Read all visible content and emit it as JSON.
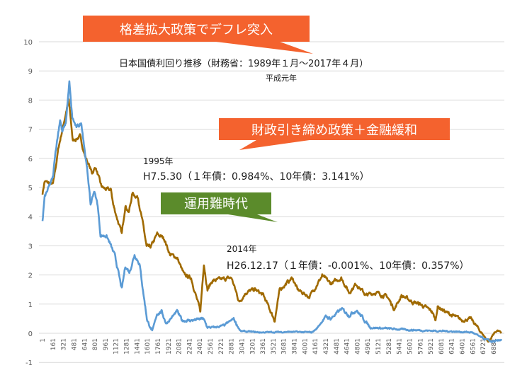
{
  "chart_data": {
    "type": "line",
    "title": "日本国債利回り推移（財務省：1989年１月～2017年４月）",
    "subtitle": "平成元年",
    "xlabel": "",
    "ylabel": "",
    "ylim": [
      -1,
      10
    ],
    "yticks": [
      "10",
      "9",
      "8",
      "7",
      "6",
      "5",
      "4",
      "3",
      "2",
      "1",
      "0",
      "-1"
    ],
    "xlim": [
      1,
      7000
    ],
    "xticks": [
      "1",
      "161",
      "321",
      "481",
      "641",
      "801",
      "961",
      "1121",
      "1281",
      "1441",
      "1601",
      "1761",
      "1921",
      "2081",
      "2241",
      "2401",
      "2561",
      "2721",
      "2881",
      "3041",
      "3201",
      "3361",
      "3521",
      "3681",
      "3841",
      "4001",
      "4161",
      "4321",
      "4481",
      "4641",
      "4801",
      "4961",
      "5121",
      "5281",
      "5441",
      "5601",
      "5761",
      "5921",
      "6081",
      "6241",
      "6401",
      "6561",
      "6721",
      "6881"
    ],
    "grid": true,
    "series": [
      {
        "name": "10年債",
        "color": "#a06a00",
        "points": [
          [
            1,
            4.8
          ],
          [
            32,
            5.2
          ],
          [
            162,
            5.1
          ],
          [
            248,
            6.4
          ],
          [
            400,
            8.0
          ],
          [
            464,
            6.6
          ],
          [
            572,
            6.75
          ],
          [
            648,
            6.1
          ],
          [
            756,
            5.5
          ],
          [
            810,
            5.7
          ],
          [
            896,
            5.05
          ],
          [
            950,
            4.95
          ],
          [
            1048,
            4.9
          ],
          [
            1080,
            4.4
          ],
          [
            1210,
            3.4
          ],
          [
            1264,
            4.4
          ],
          [
            1318,
            4.15
          ],
          [
            1372,
            4.8
          ],
          [
            1458,
            4.65
          ],
          [
            1544,
            3.6
          ],
          [
            1588,
            2.95
          ],
          [
            1652,
            2.95
          ],
          [
            1750,
            3.4
          ],
          [
            1857,
            3.25
          ],
          [
            1944,
            2.7
          ],
          [
            2052,
            2.6
          ],
          [
            2160,
            2.0
          ],
          [
            2268,
            1.9
          ],
          [
            2376,
            1.0
          ],
          [
            2408,
            0.75
          ],
          [
            2462,
            2.4
          ],
          [
            2516,
            1.5
          ],
          [
            2592,
            1.8
          ],
          [
            2883,
            1.9
          ],
          [
            3002,
            1.07
          ],
          [
            3099,
            1.4
          ],
          [
            3240,
            1.5
          ],
          [
            3369,
            1.3
          ],
          [
            3542,
            0.44
          ],
          [
            3618,
            1.5
          ],
          [
            3812,
            1.9
          ],
          [
            3888,
            1.5
          ],
          [
            4071,
            1.25
          ],
          [
            4266,
            1.97
          ],
          [
            4395,
            1.7
          ],
          [
            4557,
            1.9
          ],
          [
            4676,
            1.4
          ],
          [
            4784,
            1.7
          ],
          [
            4935,
            1.3
          ],
          [
            5076,
            1.4
          ],
          [
            5259,
            1.25
          ],
          [
            5367,
            0.83
          ],
          [
            5475,
            1.3
          ],
          [
            5648,
            1.07
          ],
          [
            5756,
            1.0
          ],
          [
            5940,
            0.75
          ],
          [
            5994,
            0.44
          ],
          [
            6026,
            0.92
          ],
          [
            6188,
            0.68
          ],
          [
            6404,
            0.44
          ],
          [
            6534,
            0.5
          ],
          [
            6695,
            0.02
          ],
          [
            6803,
            -0.3
          ],
          [
            6890,
            0.02
          ],
          [
            6944,
            0.1
          ],
          [
            6998,
            0.0
          ]
        ]
      },
      {
        "name": "1年債",
        "color": "#5b9bd5",
        "points": [
          [
            1,
            3.85
          ],
          [
            32,
            4.65
          ],
          [
            162,
            5.35
          ],
          [
            194,
            6.15
          ],
          [
            270,
            7.35
          ],
          [
            302,
            6.9
          ],
          [
            356,
            7.2
          ],
          [
            410,
            8.6
          ],
          [
            454,
            7.4
          ],
          [
            518,
            7.05
          ],
          [
            594,
            7.2
          ],
          [
            626,
            6.65
          ],
          [
            702,
            5.2
          ],
          [
            734,
            4.4
          ],
          [
            788,
            4.9
          ],
          [
            842,
            4.4
          ],
          [
            886,
            3.35
          ],
          [
            972,
            3.35
          ],
          [
            1026,
            3.1
          ],
          [
            1112,
            2.6
          ],
          [
            1210,
            1.5
          ],
          [
            1264,
            2.3
          ],
          [
            1328,
            2.1
          ],
          [
            1404,
            2.7
          ],
          [
            1480,
            2.4
          ],
          [
            1544,
            1.3
          ],
          [
            1598,
            0.44
          ],
          [
            1674,
            0.07
          ],
          [
            1750,
            0.68
          ],
          [
            1814,
            0.75
          ],
          [
            1890,
            0.34
          ],
          [
            2052,
            0.75
          ],
          [
            2127,
            0.44
          ],
          [
            2268,
            0.44
          ],
          [
            2451,
            0.5
          ],
          [
            2516,
            0.2
          ],
          [
            2624,
            0.2
          ],
          [
            2775,
            0.27
          ],
          [
            2916,
            0.5
          ],
          [
            2970,
            0.27
          ],
          [
            3024,
            0.07
          ],
          [
            3315,
            0.03
          ],
          [
            3780,
            0.05
          ],
          [
            4104,
            0.03
          ],
          [
            4179,
            0.15
          ],
          [
            4320,
            0.58
          ],
          [
            4395,
            0.5
          ],
          [
            4557,
            0.83
          ],
          [
            4676,
            0.63
          ],
          [
            4784,
            0.8
          ],
          [
            4892,
            0.5
          ],
          [
            5000,
            0.2
          ],
          [
            5324,
            0.15
          ],
          [
            5756,
            0.1
          ],
          [
            6188,
            0.07
          ],
          [
            6555,
            0.03
          ],
          [
            6695,
            -0.15
          ],
          [
            6836,
            -0.28
          ],
          [
            6944,
            -0.28
          ],
          [
            6998,
            -0.2
          ]
        ]
      }
    ],
    "annotations": {
      "a1995_year": "1995年",
      "a1995_detail": "H7.5.30（１年債：0.984%、10年債：3.141%）",
      "a2014_year": "2014年",
      "a2014_detail": "H26.12.17（１年債：-0.001%、10年債：0.357%）"
    },
    "callouts": {
      "deflation": {
        "text": "格差拡大政策でデフレ突入",
        "color": "#f4622e"
      },
      "austerity": {
        "text": "財政引き締め政策＋金融緩和",
        "color": "#f4622e"
      },
      "hard_times": {
        "text": "運用難時代",
        "color": "#5b8b2b"
      }
    }
  }
}
